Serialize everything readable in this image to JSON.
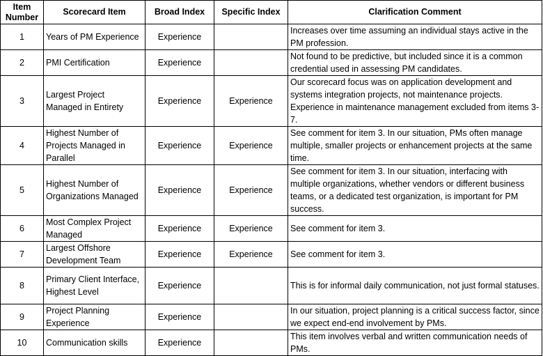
{
  "headers": {
    "item_number": "Item Number",
    "scorecard_item": "Scorecard Item",
    "broad_index": "Broad Index",
    "specific_index": "Specific Index",
    "clarification": "Clarification Comment"
  },
  "rows": [
    {
      "num": "1",
      "item": "Years of PM Experience",
      "broad": "Experience",
      "specific": "",
      "comment": "Increases over time assuming an individual stays active in the PM profession."
    },
    {
      "num": "2",
      "item": "PMI Certification",
      "broad": "Experience",
      "specific": "",
      "comment": "Not found to be predictive, but included since it is a common credential used in assessing PM candidates."
    },
    {
      "num": "3",
      "item": "Largest Project Managed in Entirety",
      "broad": "Experience",
      "specific": "Experience",
      "comment": "Our scorecard focus was on application development and systems integration projects, not maintenance projects. Experience in maintenance management excluded from items 3-7."
    },
    {
      "num": "4",
      "item": "Highest Number of Projects Managed in Parallel",
      "broad": "Experience",
      "specific": "Experience",
      "comment": "See comment for item 3. In our situation, PMs often manage multiple, smaller projects or enhancement projects at the same time."
    },
    {
      "num": "5",
      "item": "Highest Number of Organizations Managed",
      "broad": "Experience",
      "specific": "Experience",
      "comment": "See comment for item 3. In our situation, interfacing with multiple organizations, whether vendors or different business teams, or a dedicated test organization, is important for PM success."
    },
    {
      "num": "6",
      "item": "Most Complex Project Managed",
      "broad": "Experience",
      "specific": "Experience",
      "comment": "See comment for item 3."
    },
    {
      "num": "7",
      "item": "Largest Offshore Development Team",
      "broad": "Experience",
      "specific": "Experience",
      "comment": "See comment for item 3."
    },
    {
      "num": "8",
      "item": "Primary Client Interface, Highest Level",
      "broad": "Experience",
      "specific": "",
      "comment": "This is for informal daily communication, not just formal statuses."
    },
    {
      "num": "9",
      "item": "Project Planning Experience",
      "broad": "Experience",
      "specific": "",
      "comment": "In our situation, project planning is a critical success factor, since we expect end-end involvement by PMs."
    },
    {
      "num": "10",
      "item": "Communication skills",
      "broad": "Experience",
      "specific": "",
      "comment": "This item involves verbal and written communication needs of PMs."
    }
  ]
}
